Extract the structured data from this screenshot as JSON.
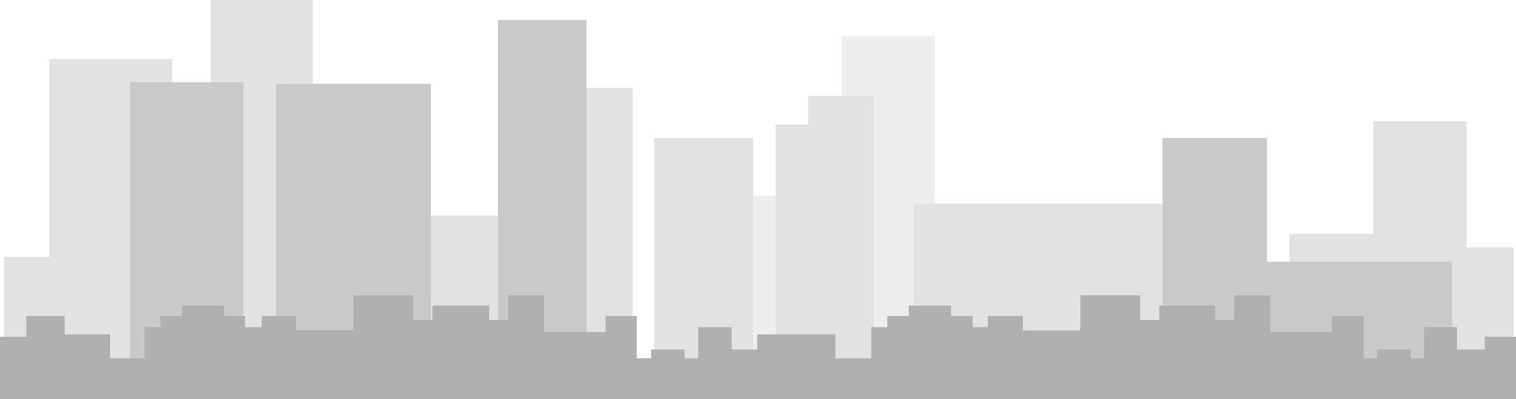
{
  "scene": {
    "colors": {
      "background": "#ffffff",
      "layer_back": "#eeeeee",
      "layer_mid": "#e2e2e2",
      "layer_mid_dark": "#c9c9c9",
      "layer_front": "#b0b0b0"
    }
  }
}
